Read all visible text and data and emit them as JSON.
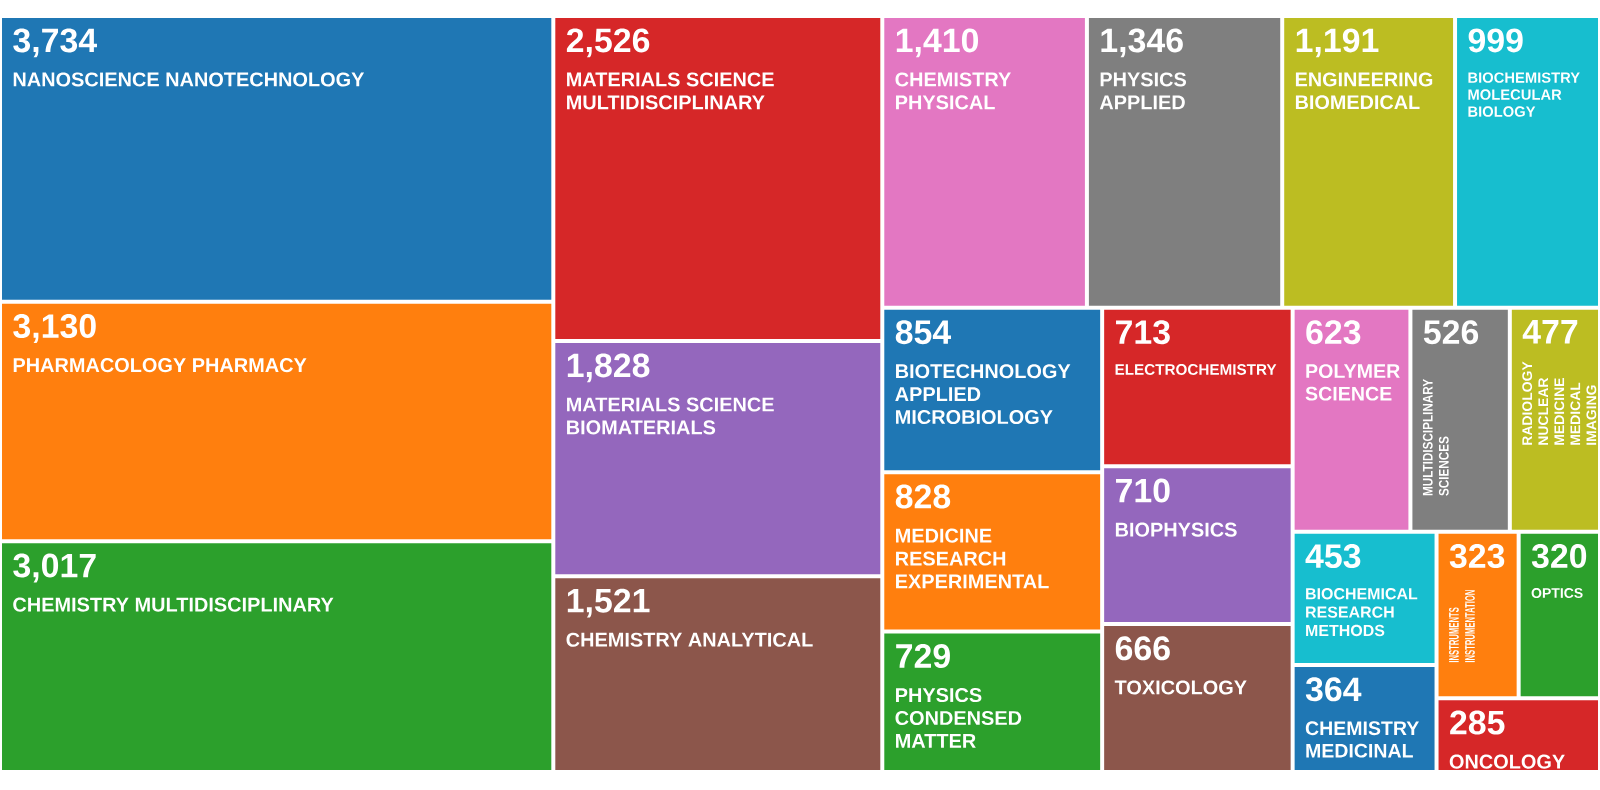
{
  "chart_data": {
    "type": "other",
    "categories": [
      "NANOSCIENCE NANOTECHNOLOGY",
      "PHARMACOLOGY PHARMACY",
      "CHEMISTRY MULTIDISCIPLINARY",
      "MATERIALS SCIENCE MULTIDISCIPLINARY",
      "MATERIALS SCIENCE BIOMATERIALS",
      "CHEMISTRY ANALYTICAL",
      "CHEMISTRY PHYSICAL",
      "PHYSICS APPLIED",
      "ENGINEERING BIOMEDICAL",
      "BIOCHEMISTRY MOLECULAR BIOLOGY",
      "BIOTECHNOLOGY APPLIED MICROBIOLOGY",
      "MEDICINE RESEARCH EXPERIMENTAL",
      "PHYSICS CONDENSED MATTER",
      "ELECTROCHEMISTRY",
      "BIOPHYSICS",
      "TOXICOLOGY",
      "POLYMER SCIENCE",
      "MULTIDISCIPLINARY SCIENCES",
      "RADIOLOGY NUCLEAR MEDICINE MEDICAL IMAGING",
      "BIOCHEMICAL RESEARCH METHODS",
      "CHEMISTRY MEDICINAL",
      "INSTRUMENTS INSTRUMENTATION",
      "OPTICS",
      "ONCOLOGY"
    ],
    "values": [
      3734,
      3130,
      3017,
      2526,
      1828,
      1521,
      1410,
      1346,
      1191,
      999,
      854,
      828,
      729,
      713,
      710,
      666,
      623,
      526,
      477,
      453,
      364,
      323,
      320,
      285
    ],
    "value_labels": [
      "3,734",
      "3,130",
      "3,017",
      "2,526",
      "1,828",
      "1,521",
      "1,410",
      "1,346",
      "1,191",
      "999",
      "854",
      "828",
      "729",
      "713",
      "710",
      "666",
      "623",
      "526",
      "477",
      "453",
      "364",
      "323",
      "320",
      "285"
    ],
    "colors": [
      "#1f77b4",
      "#ff7f0e",
      "#2ca02c",
      "#d62728",
      "#9467bd",
      "#8c564b",
      "#e377c2",
      "#7f7f7f",
      "#bcbd22",
      "#17becf",
      "#1f77b4",
      "#ff7f0e",
      "#2ca02c",
      "#d62728",
      "#9467bd",
      "#8c564b",
      "#e377c2",
      "#7f7f7f",
      "#bcbd22",
      "#17becf",
      "#1f77b4",
      "#ff7f0e",
      "#2ca02c",
      "#d62728"
    ]
  }
}
